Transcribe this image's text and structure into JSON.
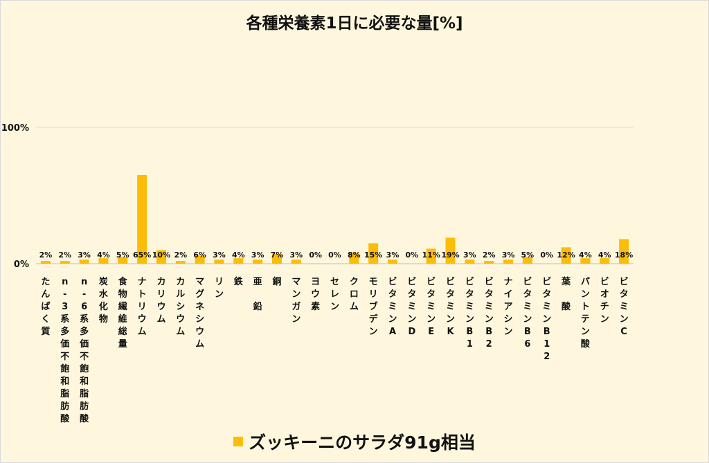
{
  "chart_data": {
    "type": "bar",
    "title": "各種栄養素1日に必要な量[%]",
    "categories": [
      "たんぱく質",
      "n-3系多価不飽和脂肪酸",
      "n-6系多価不飽和脂肪酸",
      "炭水化物",
      "食物繊維総量",
      "ナトリウム",
      "カリウム",
      "カルシウム",
      "マグネシウム",
      "リン",
      "鉄",
      "亜 鉛",
      "銅",
      "マンガン",
      "ヨウ素",
      "セレン",
      "クロム",
      "モリブデン",
      "ビタミンA",
      "ビタミンD",
      "ビタミンE",
      "ビタミンK",
      "ビタミンB1",
      "ビタミンB2",
      "ナイアシン",
      "ビタミンB6",
      "ビタミンB12",
      "葉 酸",
      "パントテン酸",
      "ビオチン",
      "ビタミンC"
    ],
    "series": [
      {
        "name": "ズッキーニのサラダ91g相当",
        "values": [
          2,
          2,
          3,
          4,
          5,
          65,
          10,
          2,
          6,
          3,
          4,
          3,
          7,
          3,
          0,
          0,
          8,
          15,
          3,
          0,
          11,
          19,
          3,
          2,
          3,
          5,
          0,
          12,
          4,
          4,
          18
        ],
        "labels": [
          "2%",
          "2%",
          "3%",
          "4%",
          "5%",
          "65%",
          "10%",
          "2%",
          "6%",
          "3%",
          "4%",
          "3%",
          "7%",
          "3%",
          "0%",
          "0%",
          "8%",
          "15%",
          "3%",
          "0%",
          "11%",
          "19%",
          "3%",
          "2%",
          "3%",
          "5%",
          "0%",
          "12%",
          "4%",
          "4%",
          "18%"
        ]
      }
    ],
    "ylim": [
      0,
      100
    ],
    "yticks": [
      0,
      100
    ],
    "ytick_labels": [
      "0%",
      "100%"
    ],
    "gridlines": true,
    "legend_position": "bottom",
    "colors": {
      "bar": "#fbbd08",
      "grid": "#e3dcc2",
      "axis": "#bfbfbf",
      "text": "#111111"
    }
  }
}
